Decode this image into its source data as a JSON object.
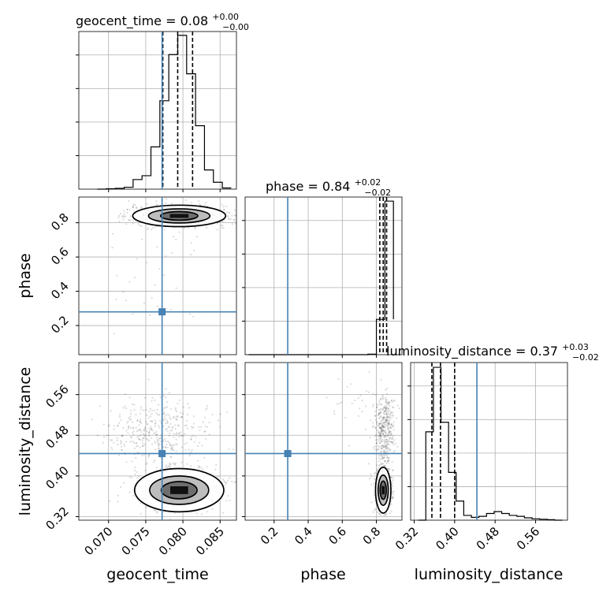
{
  "chart_data": {
    "type": "corner",
    "parameters": [
      {
        "name": "geocent_time",
        "median": 0.08,
        "plus": "0.00",
        "minus": "0.00",
        "title_main": "geocent_time = 0.08",
        "title_sup": "+0.00",
        "title_sub": "−0.00",
        "range": [
          0.066,
          0.0872
        ],
        "ticks": [
          "0.070",
          "0.075",
          "0.080",
          "0.085"
        ],
        "tick_values": [
          0.07,
          0.075,
          0.08,
          0.085
        ],
        "truth": 0.0772,
        "quantiles": [
          0.0773,
          0.0793,
          0.0813
        ]
      },
      {
        "name": "phase",
        "median": 0.84,
        "plus": "0.02",
        "minus": "0.02",
        "title_main": "phase = 0.84",
        "title_sup": "+0.02",
        "title_sub": "−0.02",
        "range": [
          0.03,
          0.95
        ],
        "ticks": [
          "0.2",
          "0.4",
          "0.6",
          "0.8"
        ],
        "tick_values": [
          0.2,
          0.4,
          0.6,
          0.8
        ],
        "truth": 0.28,
        "quantiles": [
          0.82,
          0.84,
          0.86
        ]
      },
      {
        "name": "luminosity_distance",
        "median": 0.37,
        "plus": "0.03",
        "minus": "0.02",
        "title_main": "luminosity_distance = 0.37",
        "title_sup": "+0.03",
        "title_sub": "−0.02",
        "range": [
          0.313,
          0.623
        ],
        "ticks": [
          "0.32",
          "0.40",
          "0.48",
          "0.56"
        ],
        "tick_values": [
          0.32,
          0.4,
          0.48,
          0.56
        ],
        "truth": 0.444,
        "quantiles": [
          0.355,
          0.372,
          0.4
        ]
      }
    ],
    "histograms": {
      "geocent_time": {
        "bins": [
          0.0685,
          0.0697,
          0.0709,
          0.0721,
          0.0733,
          0.0745,
          0.0757,
          0.0769,
          0.0781,
          0.0793,
          0.0805,
          0.0817,
          0.0829,
          0.0841,
          0.0853,
          0.0865
        ],
        "counts": [
          0,
          1,
          2,
          5,
          25,
          35,
          110,
          230,
          350,
          400,
          300,
          165,
          50,
          18,
          3
        ]
      },
      "phase": {
        "bins": [
          0.05,
          0.1,
          0.15,
          0.2,
          0.25,
          0.3,
          0.35,
          0.4,
          0.45,
          0.5,
          0.55,
          0.6,
          0.65,
          0.7,
          0.75,
          0.8,
          0.85,
          0.9
        ],
        "counts": [
          0,
          0,
          0,
          0,
          0,
          0,
          0,
          0,
          0,
          0,
          0,
          0,
          0,
          0,
          2,
          130,
          565,
          130
        ]
      },
      "luminosity_distance": {
        "bins": [
          0.328,
          0.343,
          0.358,
          0.373,
          0.388,
          0.403,
          0.418,
          0.433,
          0.448,
          0.463,
          0.478,
          0.493,
          0.508,
          0.523,
          0.538,
          0.553,
          0.568,
          0.583,
          0.598,
          0.613
        ],
        "counts": [
          0,
          185,
          320,
          205,
          100,
          40,
          10,
          6,
          8,
          14,
          18,
          14,
          10,
          8,
          5,
          3,
          2,
          1,
          0
        ]
      }
    },
    "histogram_ylim": {
      "geocent_time": [
        0,
        410
      ],
      "phase": [
        0,
        580
      ],
      "luminosity_distance": [
        0,
        330
      ]
    },
    "contour_levels": 3,
    "grid": true,
    "truth_color": "#4682b4",
    "hist_color": "#000000"
  }
}
